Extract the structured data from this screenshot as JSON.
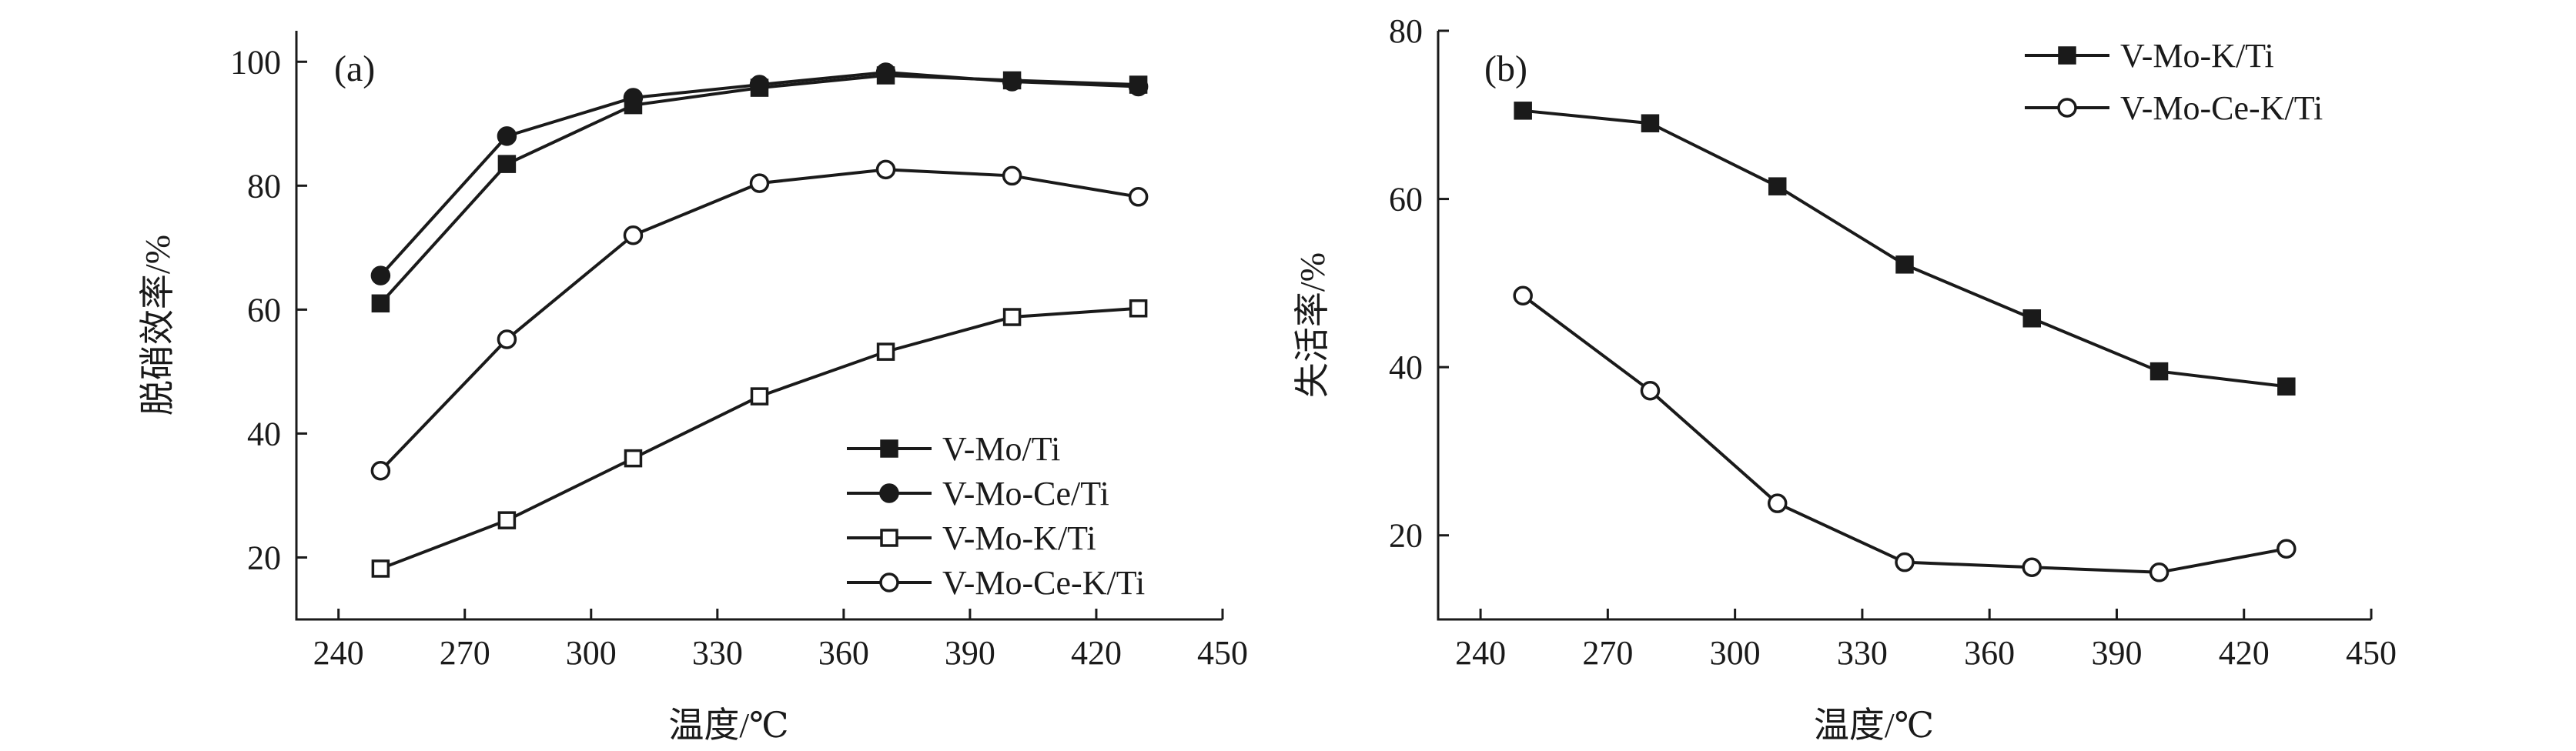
{
  "chart_data": [
    {
      "type": "line",
      "panel_label": "(a)",
      "xlabel": "温度/℃",
      "ylabel": "脱硝效率/%",
      "xlim": [
        230,
        450
      ],
      "ylim": [
        10,
        105
      ],
      "xticks": [
        240,
        270,
        300,
        330,
        360,
        390,
        420,
        450
      ],
      "yticks": [
        20,
        40,
        60,
        80,
        100
      ],
      "x": [
        250,
        280,
        310,
        340,
        370,
        400,
        430
      ],
      "legend_position": "bottom-right",
      "series": [
        {
          "name": "V-Mo/Ti",
          "marker": "square-filled",
          "values": [
            61,
            83.5,
            93,
            95.8,
            97.8,
            97,
            96.3
          ]
        },
        {
          "name": "V-Mo-Ce/Ti",
          "marker": "circle-filled",
          "values": [
            65.5,
            88,
            94.2,
            96.3,
            98.3,
            96.8,
            96
          ]
        },
        {
          "name": "V-Mo-K/Ti",
          "marker": "square-open",
          "values": [
            18.2,
            26,
            36,
            46,
            53.2,
            58.8,
            60.2
          ]
        },
        {
          "name": "V-Mo-Ce-K/Ti",
          "marker": "circle-open",
          "values": [
            34,
            55.2,
            72,
            80.4,
            82.6,
            81.6,
            78.2
          ]
        }
      ]
    },
    {
      "type": "line",
      "panel_label": "(b)",
      "xlabel": "温度/℃",
      "ylabel": "失活率/%",
      "xlim": [
        230,
        450
      ],
      "ylim": [
        10,
        80
      ],
      "xticks": [
        240,
        270,
        300,
        330,
        360,
        390,
        420,
        450
      ],
      "yticks": [
        20,
        40,
        60,
        80
      ],
      "x": [
        250,
        280,
        310,
        340,
        370,
        400,
        430
      ],
      "legend_position": "top-right",
      "series": [
        {
          "name": "V-Mo-K/Ti",
          "marker": "square-filled",
          "values": [
            70.5,
            69,
            61.5,
            52.2,
            45.8,
            39.5,
            37.7
          ]
        },
        {
          "name": "V-Mo-Ce-K/Ti",
          "marker": "circle-open",
          "values": [
            48.5,
            37.2,
            23.8,
            16.8,
            16.2,
            15.6,
            18.4
          ]
        }
      ]
    }
  ]
}
